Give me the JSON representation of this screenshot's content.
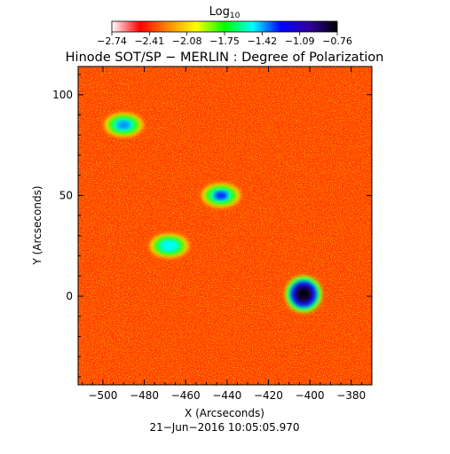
{
  "chart_data": {
    "type": "heatmap",
    "title": "Hinode SOT/SP − MERLIN : Degree of Polarization",
    "xlabel": "X (Arcseconds)",
    "ylabel": "Y (Arcseconds)",
    "timestamp": "21−Jun−2016 10:05:05.970",
    "xlim": [
      -512,
      -370
    ],
    "ylim": [
      -44,
      114
    ],
    "x_ticks": [
      {
        "value": -500,
        "label": "−500"
      },
      {
        "value": -480,
        "label": "−480"
      },
      {
        "value": -460,
        "label": "−460"
      },
      {
        "value": -440,
        "label": "−440"
      },
      {
        "value": -420,
        "label": "−420"
      },
      {
        "value": -400,
        "label": "−400"
      },
      {
        "value": -380,
        "label": "−380"
      }
    ],
    "y_ticks": [
      {
        "value": 0,
        "label": "0"
      },
      {
        "value": 50,
        "label": "50"
      },
      {
        "value": 100,
        "label": "100"
      }
    ],
    "colorbar": {
      "label_base": "Log",
      "label_sub": "10",
      "min": -2.74,
      "max": -0.76,
      "tick_labels": [
        "−2.74",
        "−2.41",
        "−2.08",
        "−1.75",
        "−1.42",
        "−1.09",
        "−0.76"
      ],
      "colormap_stops": [
        "#ffffff",
        "#ff0000",
        "#ff8c00",
        "#ffff00",
        "#00ff00",
        "#00ffff",
        "#0000ff",
        "#3000a0",
        "#000000"
      ]
    },
    "features": [
      {
        "name": "sunspot",
        "x": -403,
        "y": 1,
        "value": -0.76
      },
      {
        "name": "network-patch",
        "x": -443,
        "y": 50,
        "value": -1.3
      },
      {
        "name": "network-patch",
        "x": -490,
        "y": 85,
        "value": -1.4
      },
      {
        "name": "network-patch",
        "x": -468,
        "y": 25,
        "value": -1.5
      }
    ],
    "background_level": -2.6
  }
}
